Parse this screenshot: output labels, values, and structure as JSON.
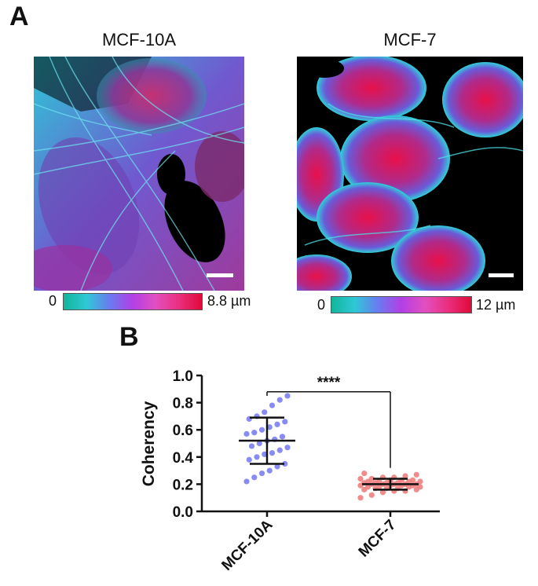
{
  "figure": {
    "panel_a_label": "A",
    "panel_b_label": "B",
    "left_image": {
      "title": "MCF-10A",
      "colorbar": {
        "min_label": "0",
        "max_label": "8.8 µm"
      }
    },
    "right_image": {
      "title": "MCF-7",
      "colorbar": {
        "min_label": "0",
        "max_label": "12 µm"
      }
    },
    "colors": {
      "colorbar_stops": [
        "#12b59b",
        "#2fc8d6",
        "#6a7bf0",
        "#b33fe6",
        "#e24fc0",
        "#ea2f7e",
        "#e00a3a"
      ],
      "mcf10a_points": "#7b7ef2",
      "mcf7_points": "#f07f7f"
    }
  },
  "chart_data": {
    "type": "scatter",
    "ylabel": "Coherency",
    "xlabel": "",
    "categories": [
      "MCF-10A",
      "MCF-7"
    ],
    "ylim": [
      0.0,
      1.0
    ],
    "yticks": [
      "0.0",
      "0.2",
      "0.4",
      "0.6",
      "0.8",
      "1.0"
    ],
    "significance": "****",
    "series": [
      {
        "category": "MCF-10A",
        "mean": 0.52,
        "sd": 0.17,
        "values": [
          0.22,
          0.25,
          0.28,
          0.3,
          0.33,
          0.35,
          0.38,
          0.4,
          0.42,
          0.43,
          0.45,
          0.47,
          0.48,
          0.5,
          0.52,
          0.53,
          0.55,
          0.57,
          0.58,
          0.6,
          0.62,
          0.64,
          0.66,
          0.68,
          0.7,
          0.73,
          0.78,
          0.82,
          0.85
        ]
      },
      {
        "category": "MCF-7",
        "mean": 0.2,
        "sd": 0.04,
        "values": [
          0.1,
          0.12,
          0.14,
          0.15,
          0.15,
          0.16,
          0.16,
          0.17,
          0.17,
          0.17,
          0.18,
          0.18,
          0.18,
          0.18,
          0.19,
          0.19,
          0.19,
          0.19,
          0.2,
          0.2,
          0.2,
          0.2,
          0.2,
          0.21,
          0.21,
          0.21,
          0.21,
          0.22,
          0.22,
          0.22,
          0.22,
          0.23,
          0.23,
          0.23,
          0.24,
          0.24,
          0.25,
          0.25,
          0.26,
          0.27,
          0.28
        ]
      }
    ]
  }
}
